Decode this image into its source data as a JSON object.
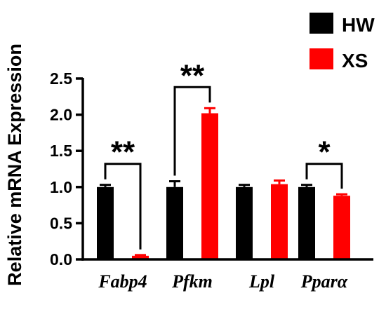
{
  "chart_data": {
    "type": "bar",
    "categories": [
      "Fabp4",
      "Pfkm",
      "Lpl",
      "Pparα"
    ],
    "series": [
      {
        "name": "HW",
        "color": "#000000",
        "values": [
          1.0,
          1.0,
          1.0,
          1.0
        ],
        "errors": [
          0.03,
          0.08,
          0.03,
          0.03
        ]
      },
      {
        "name": "XS",
        "color": "#ff0000",
        "values": [
          0.05,
          2.02,
          1.04,
          0.88
        ],
        "errors": [
          0.01,
          0.07,
          0.05,
          0.02
        ]
      }
    ],
    "ylabel": "Relative mRNA Expression",
    "ylim": [
      0.0,
      2.5
    ],
    "yticks": [
      "0.0",
      "0.5",
      "1.0",
      "1.5",
      "2.0",
      "2.5"
    ],
    "significance": [
      "**",
      "**",
      "",
      "*"
    ],
    "legend_position": "top-right",
    "grid": false
  }
}
